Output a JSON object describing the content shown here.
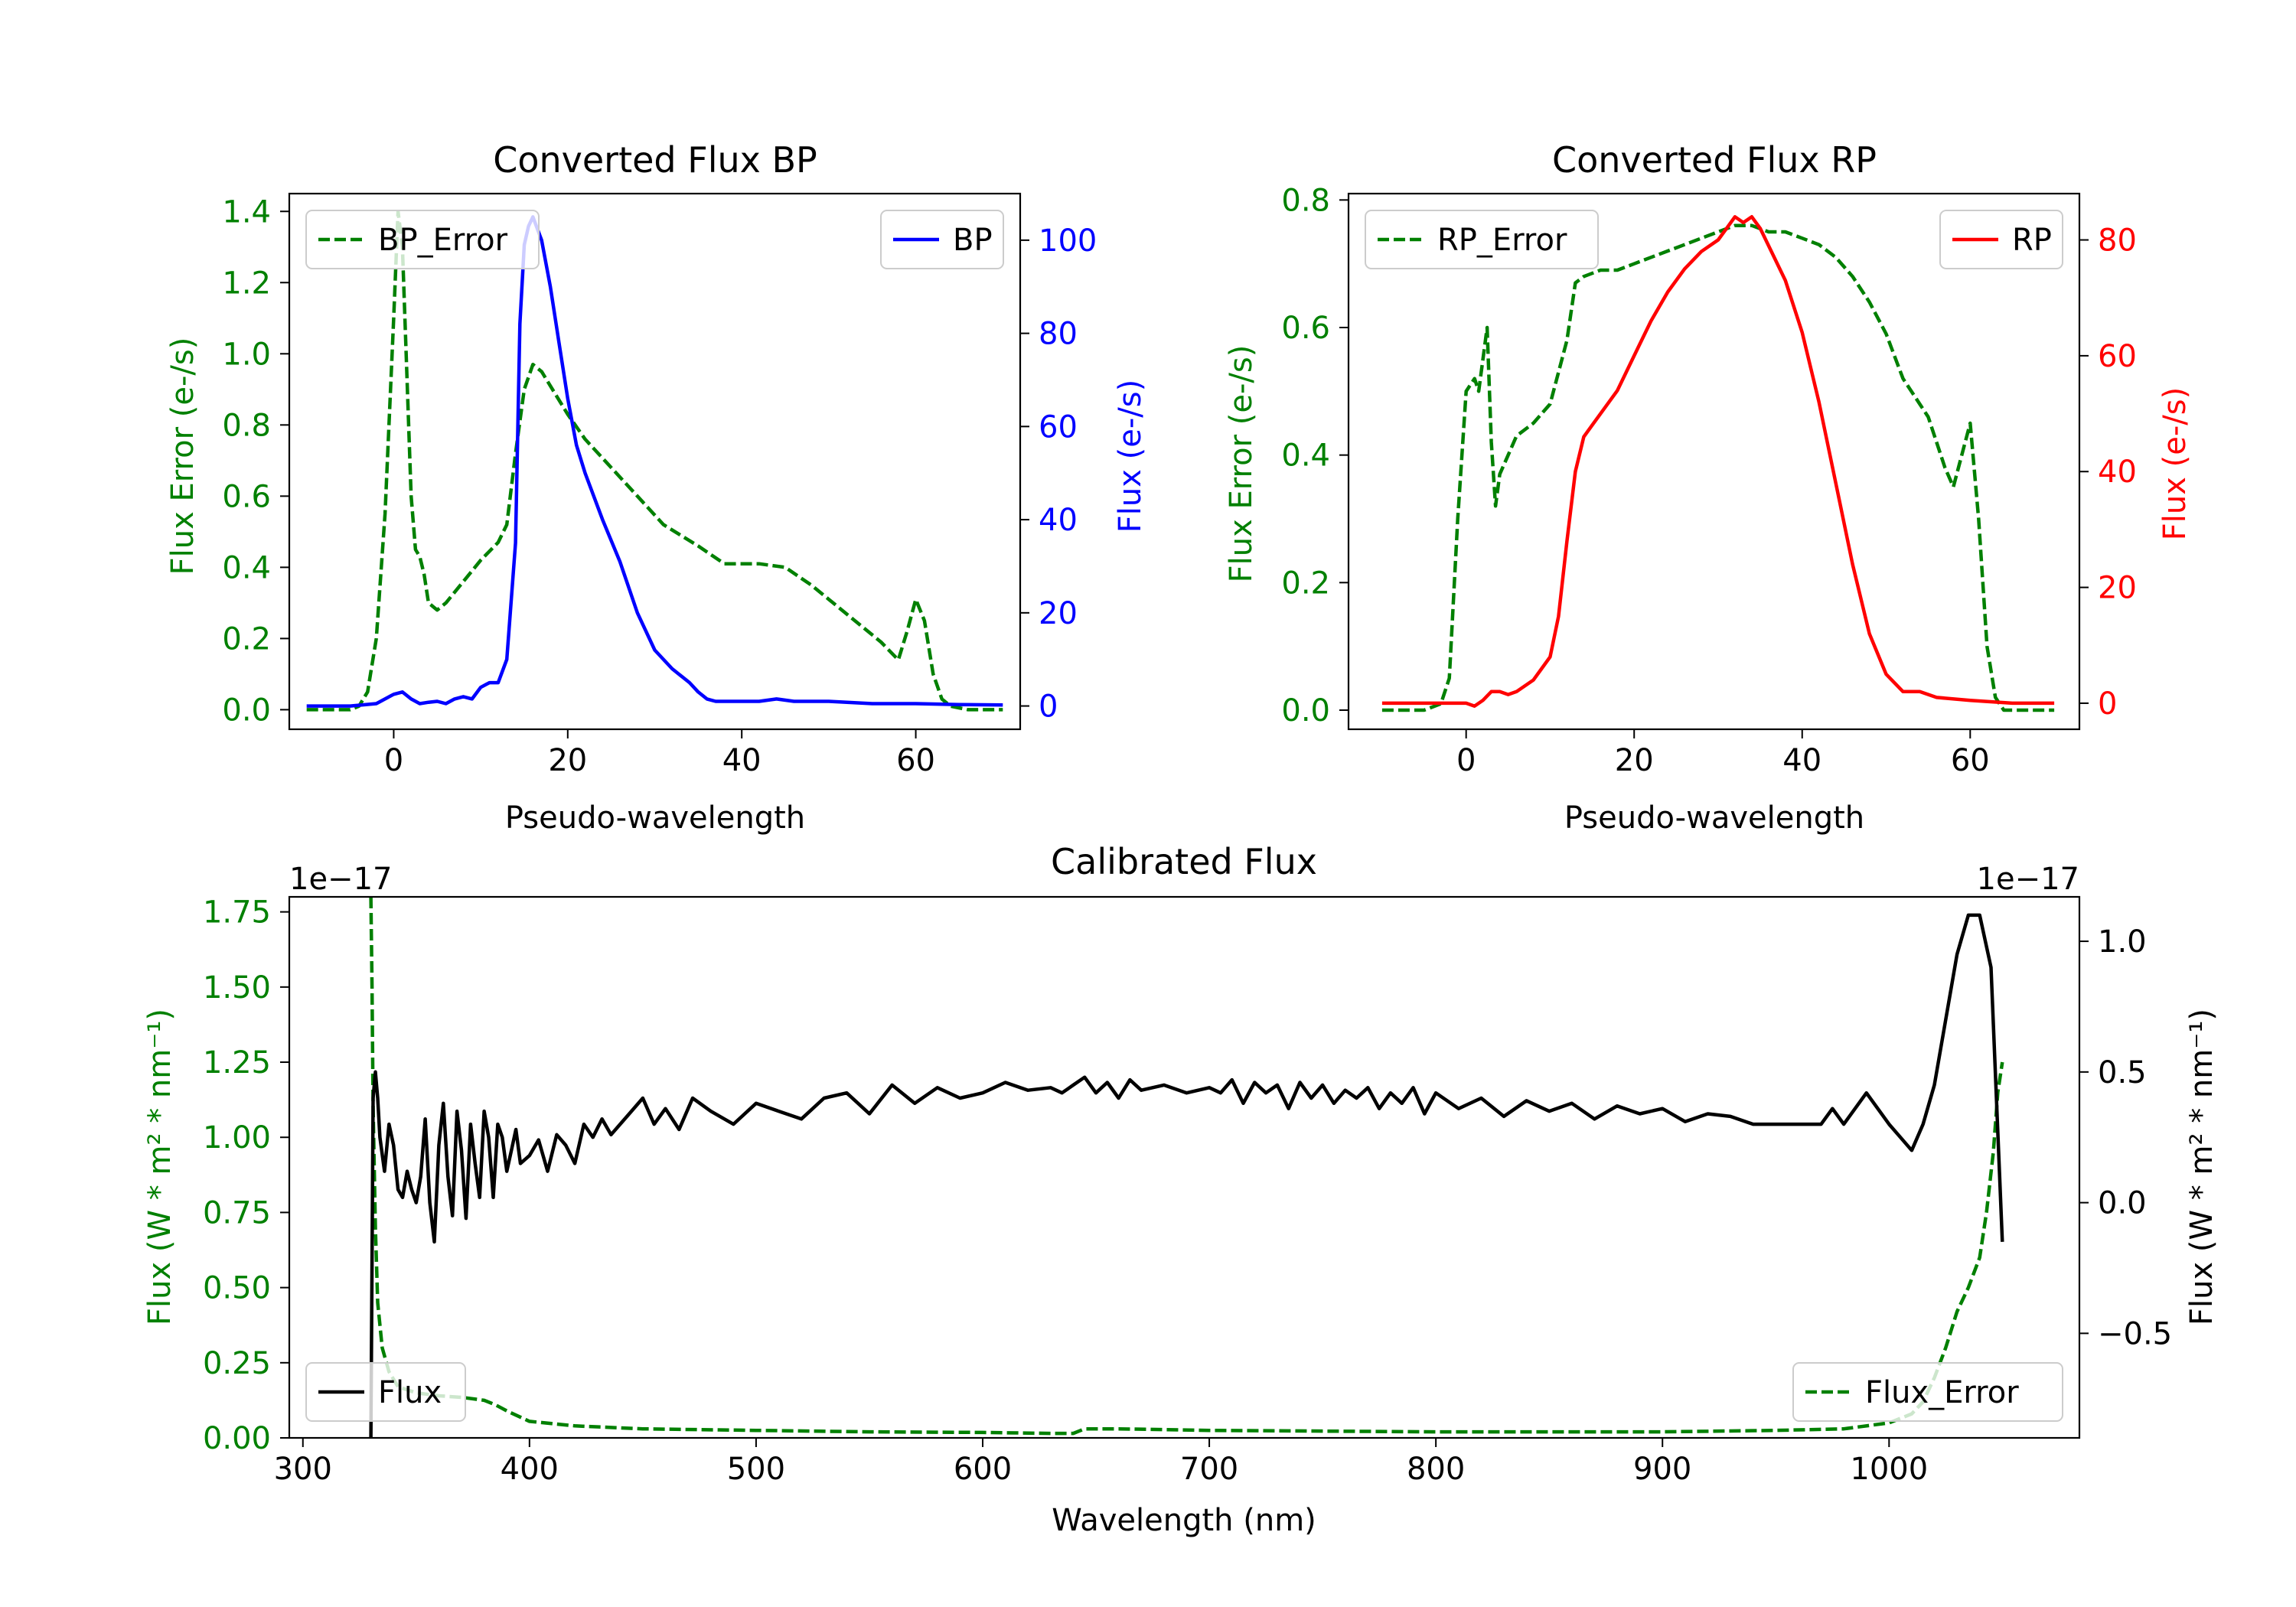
{
  "chart_data": [
    {
      "id": "bp",
      "type": "line",
      "title": "Converted Flux BP",
      "xlabel": "Pseudo-wavelength",
      "xlim": [
        -12,
        72
      ],
      "xticks": [
        0,
        20,
        40,
        60
      ],
      "left_axis": {
        "label": "Flux Error (e-/s)",
        "color": "#008000",
        "ylim": [
          -0.055,
          1.45
        ],
        "ticks": [
          0.0,
          0.2,
          0.4,
          0.6,
          0.8,
          1.0,
          1.2,
          1.4
        ],
        "tick_labels": [
          "0.0",
          "0.2",
          "0.4",
          "0.6",
          "0.8",
          "1.0",
          "1.2",
          "1.4"
        ]
      },
      "right_axis": {
        "label": "Flux (e-/s)",
        "color": "#0000ff",
        "ylim": [
          -5,
          110
        ],
        "ticks": [
          0,
          20,
          40,
          60,
          80,
          100
        ],
        "tick_labels": [
          "0",
          "20",
          "40",
          "60",
          "80",
          "100"
        ]
      },
      "series": [
        {
          "name": "BP_Error",
          "axis": "left",
          "color": "#008000",
          "style": "dashed",
          "x": [
            -10,
            -5,
            -4,
            -3,
            -2,
            -1,
            0,
            0.5,
            1,
            2,
            2.5,
            3,
            3.5,
            4,
            5,
            6,
            8,
            10,
            12,
            13,
            14,
            15,
            16,
            17,
            20,
            22,
            25,
            28,
            31,
            35,
            38,
            40,
            42,
            45,
            48,
            50,
            53,
            56,
            58,
            59,
            60,
            61,
            62,
            63,
            64,
            66,
            70
          ],
          "y": [
            0.0,
            0.0,
            0.01,
            0.05,
            0.2,
            0.55,
            1.1,
            1.4,
            1.3,
            0.6,
            0.45,
            0.43,
            0.38,
            0.3,
            0.28,
            0.3,
            0.36,
            0.42,
            0.47,
            0.52,
            0.72,
            0.9,
            0.97,
            0.95,
            0.83,
            0.76,
            0.68,
            0.6,
            0.52,
            0.46,
            0.41,
            0.41,
            0.41,
            0.4,
            0.35,
            0.31,
            0.25,
            0.19,
            0.14,
            0.22,
            0.31,
            0.25,
            0.1,
            0.03,
            0.01,
            0.0,
            0.0
          ]
        },
        {
          "name": "BP",
          "axis": "right",
          "color": "#0000ff",
          "style": "solid",
          "x": [
            -10,
            -5,
            -2,
            0,
            1,
            2,
            3,
            4,
            5,
            6,
            7,
            8,
            9,
            10,
            11,
            12,
            13,
            14,
            14.5,
            15,
            15.5,
            16,
            17,
            18,
            19,
            20,
            21,
            22,
            24,
            26,
            28,
            30,
            32,
            34,
            35,
            36,
            37,
            38,
            40,
            42,
            44,
            46,
            50,
            55,
            60,
            65,
            70
          ],
          "y": [
            0,
            0,
            0.5,
            2.5,
            3,
            1.5,
            0.5,
            0.8,
            1,
            0.5,
            1.5,
            2,
            1.5,
            4,
            5,
            5,
            10,
            35,
            82,
            99,
            103,
            105,
            100,
            90,
            78,
            66,
            56,
            50,
            40,
            31,
            20,
            12,
            8,
            5,
            3,
            1.5,
            1,
            1,
            1,
            1,
            1.5,
            1,
            1,
            0.5,
            0.5,
            0.3,
            0.2
          ]
        }
      ],
      "legends": [
        {
          "entries": [
            "BP_Error"
          ],
          "location": "upper left"
        },
        {
          "entries": [
            "BP"
          ],
          "location": "upper right"
        }
      ]
    },
    {
      "id": "rp",
      "type": "line",
      "title": "Converted Flux RP",
      "xlabel": "Pseudo-wavelength",
      "xlim": [
        -14,
        73
      ],
      "xticks": [
        0,
        20,
        40,
        60
      ],
      "left_axis": {
        "label": "Flux Error (e-/s)",
        "color": "#008000",
        "ylim": [
          -0.03,
          0.81
        ],
        "ticks": [
          0.0,
          0.2,
          0.4,
          0.6,
          0.8
        ],
        "tick_labels": [
          "0.0",
          "0.2",
          "0.4",
          "0.6",
          "0.8"
        ]
      },
      "right_axis": {
        "label": "Flux (e-/s)",
        "color": "#ff0000",
        "ylim": [
          -4.5,
          88
        ],
        "ticks": [
          0,
          20,
          40,
          60,
          80
        ],
        "tick_labels": [
          "0",
          "20",
          "40",
          "60",
          "80"
        ]
      },
      "series": [
        {
          "name": "RP_Error",
          "axis": "left",
          "color": "#008000",
          "style": "dashed",
          "x": [
            -10,
            -5,
            -3,
            -2,
            -1,
            0,
            1,
            1.5,
            2,
            2.5,
            3,
            3.5,
            4,
            5,
            6,
            8,
            10,
            12,
            13,
            14,
            16,
            18,
            20,
            22,
            24,
            26,
            28,
            30,
            32,
            34,
            36,
            38,
            40,
            42,
            44,
            46,
            48,
            50,
            52,
            54,
            55,
            56,
            57,
            58,
            59,
            60,
            61,
            62,
            63,
            64,
            66,
            70
          ],
          "y": [
            0.0,
            0.0,
            0.01,
            0.05,
            0.3,
            0.5,
            0.52,
            0.5,
            0.55,
            0.6,
            0.42,
            0.32,
            0.37,
            0.4,
            0.43,
            0.45,
            0.48,
            0.58,
            0.67,
            0.68,
            0.69,
            0.69,
            0.7,
            0.71,
            0.72,
            0.73,
            0.74,
            0.75,
            0.76,
            0.76,
            0.75,
            0.75,
            0.74,
            0.73,
            0.71,
            0.68,
            0.64,
            0.59,
            0.52,
            0.48,
            0.46,
            0.42,
            0.38,
            0.35,
            0.4,
            0.45,
            0.3,
            0.1,
            0.02,
            0.0,
            0.0,
            0.0
          ]
        },
        {
          "name": "RP",
          "axis": "right",
          "color": "#ff0000",
          "style": "solid",
          "x": [
            -10,
            -5,
            -2,
            0,
            1,
            2,
            3,
            4,
            5,
            6,
            8,
            9,
            10,
            11,
            12,
            13,
            14,
            15,
            16,
            18,
            20,
            22,
            24,
            26,
            28,
            30,
            31,
            32,
            33,
            34,
            35,
            36,
            38,
            40,
            42,
            44,
            46,
            48,
            50,
            52,
            54,
            56,
            60,
            65,
            70
          ],
          "y": [
            0,
            0,
            0,
            0,
            -0.5,
            0.5,
            2,
            2,
            1.5,
            2,
            4,
            6,
            8,
            15,
            28,
            40,
            46,
            48,
            50,
            54,
            60,
            66,
            71,
            75,
            78,
            80,
            82,
            84,
            83,
            84,
            82,
            79,
            73,
            64,
            52,
            38,
            24,
            12,
            5,
            2,
            2,
            1,
            0.5,
            0,
            0
          ]
        }
      ],
      "legends": [
        {
          "entries": [
            "RP_Error"
          ],
          "location": "upper left"
        },
        {
          "entries": [
            "RP"
          ],
          "location": "upper right"
        }
      ]
    },
    {
      "id": "cal",
      "type": "line",
      "title": "Calibrated Flux",
      "xlabel": "Wavelength (nm)",
      "xlim": [
        294,
        1084
      ],
      "xticks": [
        300,
        400,
        500,
        600,
        700,
        800,
        900,
        1000
      ],
      "left_axis": {
        "label": "Flux (W * m² * nm⁻¹)",
        "color": "#008000",
        "offset_text": "1e−17",
        "ylim": [
          0.0,
          1.8
        ],
        "ticks": [
          0.0,
          0.25,
          0.5,
          0.75,
          1.0,
          1.25,
          1.5,
          1.75
        ],
        "tick_labels": [
          "0.00",
          "0.25",
          "0.50",
          "0.75",
          "1.00",
          "1.25",
          "1.50",
          "1.75"
        ]
      },
      "right_axis": {
        "label": "Flux (W * m² * nm⁻¹)",
        "color": "#000000",
        "offset_text": "1e−17",
        "ylim": [
          -0.9,
          1.17
        ],
        "ticks": [
          -0.5,
          0.0,
          0.5,
          1.0
        ],
        "tick_labels": [
          "−0.5",
          "0.0",
          "0.5",
          "1.0"
        ]
      },
      "series": [
        {
          "name": "Flux_Error",
          "axis": "left",
          "color": "#008000",
          "style": "dashed",
          "x": [
            330,
            330.5,
            331,
            332,
            333,
            335,
            338,
            342,
            350,
            360,
            370,
            380,
            385,
            390,
            400,
            420,
            450,
            500,
            550,
            600,
            630,
            640,
            645,
            660,
            700,
            800,
            900,
            950,
            980,
            1000,
            1010,
            1015,
            1020,
            1025,
            1030,
            1035,
            1040,
            1043,
            1046,
            1048,
            1050
          ],
          "y": [
            1.8,
            1.5,
            1.1,
            0.7,
            0.45,
            0.3,
            0.22,
            0.17,
            0.15,
            0.14,
            0.135,
            0.125,
            0.11,
            0.09,
            0.055,
            0.04,
            0.03,
            0.025,
            0.02,
            0.018,
            0.015,
            0.015,
            0.03,
            0.03,
            0.025,
            0.02,
            0.02,
            0.025,
            0.03,
            0.05,
            0.08,
            0.12,
            0.2,
            0.3,
            0.42,
            0.5,
            0.6,
            0.75,
            0.95,
            1.15,
            1.25
          ]
        },
        {
          "name": "Flux",
          "axis": "right",
          "color": "#000000",
          "style": "solid",
          "x": [
            330,
            331,
            332,
            333,
            334,
            336,
            338,
            340,
            342,
            344,
            346,
            348,
            350,
            352,
            354,
            356,
            358,
            360,
            362,
            364,
            366,
            368,
            370,
            372,
            374,
            376,
            378,
            380,
            382,
            384,
            386,
            388,
            390,
            392,
            394,
            396,
            400,
            404,
            408,
            412,
            416,
            420,
            424,
            428,
            432,
            436,
            440,
            445,
            450,
            455,
            460,
            466,
            472,
            480,
            490,
            500,
            510,
            520,
            530,
            540,
            550,
            560,
            570,
            580,
            590,
            600,
            610,
            620,
            630,
            635,
            640,
            645,
            650,
            655,
            660,
            665,
            670,
            675,
            680,
            690,
            700,
            705,
            710,
            715,
            720,
            725,
            730,
            735,
            740,
            745,
            750,
            755,
            760,
            765,
            770,
            775,
            780,
            785,
            790,
            795,
            800,
            810,
            820,
            830,
            840,
            850,
            860,
            870,
            880,
            890,
            900,
            910,
            920,
            930,
            940,
            950,
            960,
            970,
            975,
            980,
            990,
            1000,
            1005,
            1010,
            1015,
            1020,
            1025,
            1030,
            1035,
            1040,
            1045,
            1050
          ],
          "y": [
            -0.9,
            0.4,
            0.5,
            0.4,
            0.25,
            0.12,
            0.3,
            0.22,
            0.05,
            0.02,
            0.12,
            0.05,
            0.0,
            0.1,
            0.32,
            0.0,
            -0.15,
            0.22,
            0.38,
            0.1,
            -0.05,
            0.35,
            0.2,
            -0.06,
            0.3,
            0.15,
            0.02,
            0.35,
            0.25,
            0.02,
            0.3,
            0.25,
            0.12,
            0.2,
            0.28,
            0.15,
            0.18,
            0.24,
            0.12,
            0.26,
            0.22,
            0.15,
            0.3,
            0.25,
            0.32,
            0.26,
            0.3,
            0.35,
            0.4,
            0.3,
            0.36,
            0.28,
            0.4,
            0.35,
            0.3,
            0.38,
            0.35,
            0.32,
            0.4,
            0.42,
            0.34,
            0.45,
            0.38,
            0.44,
            0.4,
            0.42,
            0.46,
            0.43,
            0.44,
            0.42,
            0.45,
            0.48,
            0.42,
            0.46,
            0.4,
            0.47,
            0.43,
            0.44,
            0.45,
            0.42,
            0.44,
            0.42,
            0.47,
            0.38,
            0.46,
            0.42,
            0.45,
            0.36,
            0.46,
            0.4,
            0.45,
            0.38,
            0.43,
            0.4,
            0.44,
            0.36,
            0.42,
            0.38,
            0.44,
            0.34,
            0.42,
            0.36,
            0.4,
            0.33,
            0.39,
            0.35,
            0.38,
            0.32,
            0.37,
            0.34,
            0.36,
            0.31,
            0.34,
            0.33,
            0.3,
            0.3,
            0.3,
            0.3,
            0.36,
            0.3,
            0.42,
            0.3,
            0.25,
            0.2,
            0.3,
            0.45,
            0.7,
            0.95,
            1.1,
            1.1,
            0.9,
            -0.15
          ]
        }
      ],
      "legends": [
        {
          "entries": [
            "Flux"
          ],
          "location": "lower left"
        },
        {
          "entries": [
            "Flux_Error"
          ],
          "location": "lower right"
        }
      ]
    }
  ]
}
